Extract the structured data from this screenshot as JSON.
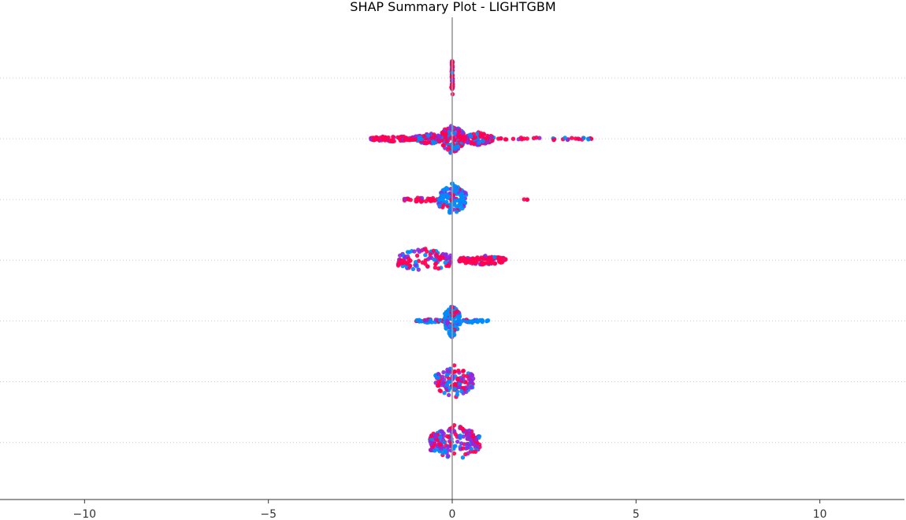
{
  "chart_data": {
    "type": "scatter",
    "subtype": "shap-beeswarm",
    "title": "SHAP Summary Plot - LIGHTGBM",
    "xlabel": "",
    "ylabel": "",
    "xlim": [
      -12.3,
      12.3
    ],
    "x_ticks": [
      -10,
      -5,
      0,
      5,
      10
    ],
    "x_tick_labels": [
      "−10",
      "−5",
      "0",
      "5",
      "10"
    ],
    "feature_labels_visible": false,
    "row_count": 7,
    "grid": "horizontal dotted",
    "color_scale": {
      "low": "#008bfb",
      "mid": "#8a2be2",
      "high": "#ff0052"
    },
    "rows": [
      {
        "clusters": [
          {
            "x": [
              0.0,
              0.0
            ],
            "spread": 0.02,
            "half_height": 0.38,
            "count": 70,
            "color": "high"
          }
        ]
      },
      {
        "clusters": [
          {
            "x": [
              -2.2,
              -1.0
            ],
            "spread": 0.06,
            "half_height": 0.06,
            "count": 70,
            "color": "high"
          },
          {
            "x": [
              -1.0,
              -0.3
            ],
            "spread": 0.08,
            "half_height": 0.12,
            "count": 90,
            "color": "mixed"
          },
          {
            "x": [
              -0.3,
              0.3
            ],
            "spread": 0.1,
            "half_height": 0.32,
            "count": 140,
            "color": "mixed"
          },
          {
            "x": [
              0.3,
              1.1
            ],
            "spread": 0.08,
            "half_height": 0.14,
            "count": 100,
            "color": "mixed"
          },
          {
            "x": [
              1.1,
              3.95
            ],
            "spread": 0.02,
            "half_height": 0.03,
            "count": 34,
            "color": "high"
          }
        ]
      },
      {
        "clusters": [
          {
            "x": [
              -1.35,
              -0.35
            ],
            "spread": 0.04,
            "half_height": 0.05,
            "count": 32,
            "color": "high"
          },
          {
            "x": [
              -0.35,
              0.35
            ],
            "spread": 0.08,
            "half_height": 0.34,
            "count": 130,
            "color": "low"
          },
          {
            "x": [
              1.95,
              2.05
            ],
            "spread": 0.0,
            "half_height": 0.01,
            "count": 3,
            "color": "high"
          }
        ]
      },
      {
        "clusters": [
          {
            "x": [
              -1.5,
              0.0
            ],
            "spread": 0.08,
            "half_height": 0.26,
            "count": 100,
            "color": "mixed"
          },
          {
            "x": [
              0.2,
              1.45
            ],
            "spread": 0.06,
            "half_height": 0.1,
            "count": 110,
            "color": "high"
          }
        ]
      },
      {
        "clusters": [
          {
            "x": [
              -1.0,
              -0.2
            ],
            "spread": 0.03,
            "half_height": 0.04,
            "count": 36,
            "color": "low"
          },
          {
            "x": [
              -0.2,
              0.2
            ],
            "spread": 0.1,
            "half_height": 0.36,
            "count": 120,
            "color": "low"
          },
          {
            "x": [
              0.2,
              1.0
            ],
            "spread": 0.03,
            "half_height": 0.04,
            "count": 30,
            "color": "low"
          }
        ]
      },
      {
        "clusters": [
          {
            "x": [
              -0.45,
              0.55
            ],
            "spread": 0.1,
            "half_height": 0.34,
            "count": 130,
            "color": "mixed"
          }
        ]
      },
      {
        "clusters": [
          {
            "x": [
              -0.6,
              0.75
            ],
            "spread": 0.12,
            "half_height": 0.38,
            "count": 200,
            "color": "mixed"
          }
        ]
      }
    ]
  }
}
